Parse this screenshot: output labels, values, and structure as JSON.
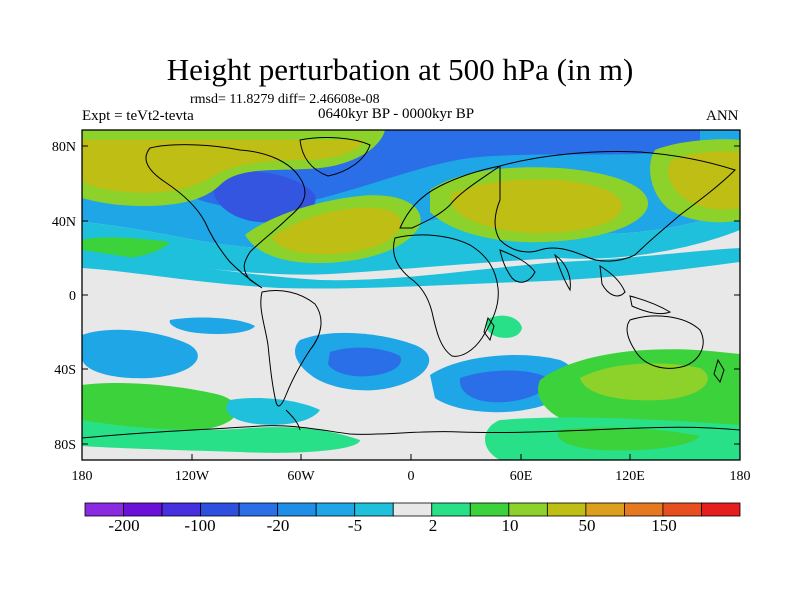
{
  "title": "Height perturbation at 500 hPa (in m)",
  "stats": "rmsd= 11.8279 diff= 2.46608e-08",
  "expt": "Expt = teVt2-tevta",
  "period": "0640kyr BP - 0000kyr BP",
  "season": "ANN",
  "lat_ticks": [
    "80N",
    "40N",
    "0",
    "40S",
    "80S"
  ],
  "lon_ticks": [
    "180",
    "120W",
    "60W",
    "0",
    "60E",
    "120E",
    "180"
  ],
  "colorbar": {
    "labels": [
      "-200",
      "-100",
      "-20",
      "-5",
      "2",
      "10",
      "50",
      "150"
    ],
    "colors": [
      "#8a2be2",
      "#6a10d8",
      "#4630e0",
      "#2c4fdf",
      "#2a6ee8",
      "#1e8ee6",
      "#1ea6e6",
      "#1ec0dc",
      "#e8e8e8",
      "#28e088",
      "#3cd23c",
      "#8cd22a",
      "#bebe14",
      "#dca01e",
      "#e67820",
      "#e84f1e",
      "#e61e1e"
    ]
  },
  "colors": {
    "background": "#e8e8e8",
    "cyan": "#1ec0dc",
    "sky": "#1ea6e6",
    "blue": "#2a6ee8",
    "deep_blue": "#3355e0",
    "teal_green": "#28e088",
    "green": "#3cd23c",
    "lime": "#8cd22a",
    "olive": "#bebe14",
    "orange": "#dca01e",
    "coast": "#000000"
  }
}
